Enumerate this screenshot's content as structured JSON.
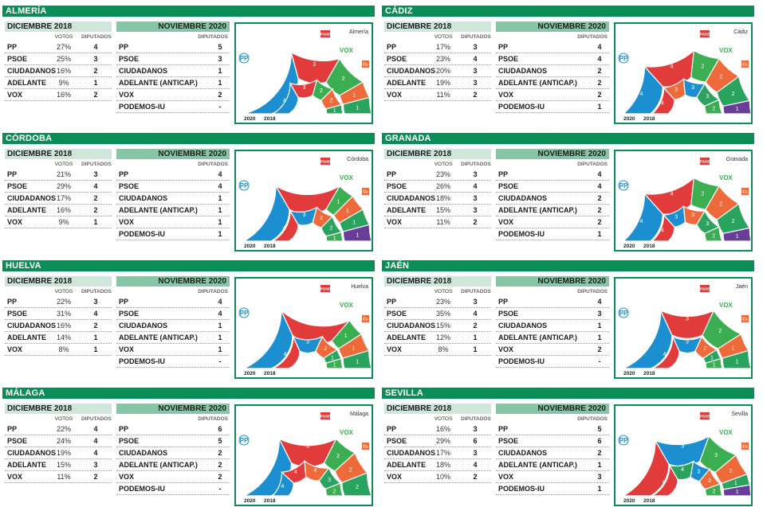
{
  "labels": {
    "dic2018": "DICIEMBRE 2018",
    "nov2020": "NOVIEMBRE 2020",
    "votos": "VOTOS",
    "diputados": "DIPUTADOS",
    "year2020": "2020",
    "year2018": "2018",
    "logos": {
      "pp": "PP",
      "psoe": "PSOE",
      "vox": "VOX",
      "cs": "Cs",
      "adelante": "A"
    }
  },
  "colors": {
    "PP": "#1b8fd0",
    "PSOE": "#e23b3b",
    "CIUDADANOS": "#ee6a3a",
    "ADELANTE": "#2aa35e",
    "VOX": "#3cae52",
    "PODEMOS-IU": "#6a3d9a",
    "frame": "#0a8d57"
  },
  "chart_data": [
    {
      "type": "parliament-semicircle",
      "province": "ALMERÍA",
      "chart_label": "Almería",
      "d2018": [
        {
          "party": "PP",
          "votes": "27%",
          "seats": "4"
        },
        {
          "party": "PSOE",
          "votes": "25%",
          "seats": "3"
        },
        {
          "party": "CIUDADANOS",
          "votes": "16%",
          "seats": "2"
        },
        {
          "party": "ADELANTE",
          "votes": "9%",
          "seats": "1"
        },
        {
          "party": "VOX",
          "votes": "16%",
          "seats": "2"
        }
      ],
      "n2020": [
        {
          "party": "PP",
          "seats": "5"
        },
        {
          "party": "PSOE",
          "seats": "3"
        },
        {
          "party": "CIUDADANOS",
          "seats": "1"
        },
        {
          "party": "ADELANTE (ANTICAP.)",
          "seats": "1"
        },
        {
          "party": "VOX",
          "seats": "2"
        },
        {
          "party": "PODEMOS-IU",
          "seats": "-"
        }
      ],
      "outer": [
        {
          "party": "PP",
          "seats": 5
        },
        {
          "party": "PSOE",
          "seats": 3
        },
        {
          "party": "VOX",
          "seats": 2
        },
        {
          "party": "CIUDADANOS",
          "seats": 1
        },
        {
          "party": "ADELANTE",
          "seats": 1
        }
      ],
      "inner": [
        {
          "party": "PP",
          "seats": 4
        },
        {
          "party": "PSOE",
          "seats": 3
        },
        {
          "party": "VOX",
          "seats": 2
        },
        {
          "party": "CIUDADANOS",
          "seats": 2
        },
        {
          "party": "ADELANTE",
          "seats": 1
        }
      ]
    },
    {
      "type": "parliament-semicircle",
      "province": "CÁDIZ",
      "chart_label": "Cádiz",
      "d2018": [
        {
          "party": "PP",
          "votes": "17%",
          "seats": "3"
        },
        {
          "party": "PSOE",
          "votes": "23%",
          "seats": "4"
        },
        {
          "party": "CIUDADANOS",
          "votes": "20%",
          "seats": "3"
        },
        {
          "party": "ADELANTE",
          "votes": "19%",
          "seats": "3"
        },
        {
          "party": "VOX",
          "votes": "11%",
          "seats": "2"
        }
      ],
      "n2020": [
        {
          "party": "PP",
          "seats": "4"
        },
        {
          "party": "PSOE",
          "seats": "4"
        },
        {
          "party": "CIUDADANOS",
          "seats": "2"
        },
        {
          "party": "ADELANTE (ANTICAP.)",
          "seats": "2"
        },
        {
          "party": "VOX",
          "seats": "2"
        },
        {
          "party": "PODEMOS-IU",
          "seats": "1"
        }
      ],
      "outer": [
        {
          "party": "PP",
          "seats": 4
        },
        {
          "party": "PSOE",
          "seats": 4
        },
        {
          "party": "VOX",
          "seats": 2
        },
        {
          "party": "CIUDADANOS",
          "seats": 2
        },
        {
          "party": "ADELANTE",
          "seats": 2
        },
        {
          "party": "PODEMOS-IU",
          "seats": 1
        }
      ],
      "inner": [
        {
          "party": "PSOE",
          "seats": 4
        },
        {
          "party": "CIUDADANOS",
          "seats": 3
        },
        {
          "party": "PP",
          "seats": 3
        },
        {
          "party": "ADELANTE",
          "seats": 3
        },
        {
          "party": "VOX",
          "seats": 2
        }
      ]
    },
    {
      "type": "parliament-semicircle",
      "province": "CÓRDOBA",
      "chart_label": "Córdoba",
      "d2018": [
        {
          "party": "PP",
          "votes": "21%",
          "seats": "3"
        },
        {
          "party": "PSOE",
          "votes": "29%",
          "seats": "4"
        },
        {
          "party": "CIUDADANOS",
          "votes": "17%",
          "seats": "2"
        },
        {
          "party": "ADELANTE",
          "votes": "16%",
          "seats": "2"
        },
        {
          "party": "VOX",
          "votes": "9%",
          "seats": "1"
        }
      ],
      "n2020": [
        {
          "party": "PP",
          "seats": "4"
        },
        {
          "party": "PSOE",
          "seats": "4"
        },
        {
          "party": "CIUDADANOS",
          "seats": "1"
        },
        {
          "party": "ADELANTE (ANTICAP.)",
          "seats": "1"
        },
        {
          "party": "VOX",
          "seats": "1"
        },
        {
          "party": "PODEMOS-IU",
          "seats": "1"
        }
      ],
      "outer": [
        {
          "party": "PP",
          "seats": 4
        },
        {
          "party": "PSOE",
          "seats": 4
        },
        {
          "party": "VOX",
          "seats": 1
        },
        {
          "party": "CIUDADANOS",
          "seats": 1
        },
        {
          "party": "ADELANTE",
          "seats": 1
        },
        {
          "party": "PODEMOS-IU",
          "seats": 1
        }
      ],
      "inner": [
        {
          "party": "PSOE",
          "seats": 4
        },
        {
          "party": "PP",
          "seats": 3
        },
        {
          "party": "CIUDADANOS",
          "seats": 2
        },
        {
          "party": "ADELANTE",
          "seats": 2
        },
        {
          "party": "VOX",
          "seats": 1
        }
      ]
    },
    {
      "type": "parliament-semicircle",
      "province": "GRANADA",
      "chart_label": "Granada",
      "d2018": [
        {
          "party": "PP",
          "votes": "23%",
          "seats": "3"
        },
        {
          "party": "PSOE",
          "votes": "26%",
          "seats": "4"
        },
        {
          "party": "CIUDADANOS",
          "votes": "18%",
          "seats": "3"
        },
        {
          "party": "ADELANTE",
          "votes": "15%",
          "seats": "3"
        },
        {
          "party": "VOX",
          "votes": "11%",
          "seats": "2"
        }
      ],
      "n2020": [
        {
          "party": "PP",
          "seats": "4"
        },
        {
          "party": "PSOE",
          "seats": "4"
        },
        {
          "party": "CIUDADANOS",
          "seats": "2"
        },
        {
          "party": "ADELANTE (ANTICAP.)",
          "seats": "2"
        },
        {
          "party": "VOX",
          "seats": "2"
        },
        {
          "party": "PODEMOS-IU",
          "seats": "1"
        }
      ],
      "outer": [
        {
          "party": "PP",
          "seats": 4
        },
        {
          "party": "PSOE",
          "seats": 4
        },
        {
          "party": "VOX",
          "seats": 2
        },
        {
          "party": "CIUDADANOS",
          "seats": 2
        },
        {
          "party": "ADELANTE",
          "seats": 2
        },
        {
          "party": "PODEMOS-IU",
          "seats": 1
        }
      ],
      "inner": [
        {
          "party": "PSOE",
          "seats": 4
        },
        {
          "party": "PP",
          "seats": 3
        },
        {
          "party": "CIUDADANOS",
          "seats": 3
        },
        {
          "party": "ADELANTE",
          "seats": 3
        },
        {
          "party": "VOX",
          "seats": 2
        }
      ]
    },
    {
      "type": "parliament-semicircle",
      "province": "HUELVA",
      "chart_label": "Huelva",
      "d2018": [
        {
          "party": "PP",
          "votes": "22%",
          "seats": "3"
        },
        {
          "party": "PSOE",
          "votes": "31%",
          "seats": "4"
        },
        {
          "party": "CIUDADANOS",
          "votes": "16%",
          "seats": "2"
        },
        {
          "party": "ADELANTE",
          "votes": "14%",
          "seats": "1"
        },
        {
          "party": "VOX",
          "votes": "8%",
          "seats": "1"
        }
      ],
      "n2020": [
        {
          "party": "PP",
          "seats": "4"
        },
        {
          "party": "PSOE",
          "seats": "4"
        },
        {
          "party": "CIUDADANOS",
          "seats": "1"
        },
        {
          "party": "ADELANTE (ANTICAP.)",
          "seats": "1"
        },
        {
          "party": "VOX",
          "seats": "1"
        },
        {
          "party": "PODEMOS-IU",
          "seats": "-"
        }
      ],
      "outer": [
        {
          "party": "PP",
          "seats": 4
        },
        {
          "party": "PSOE",
          "seats": 4
        },
        {
          "party": "VOX",
          "seats": 1
        },
        {
          "party": "CIUDADANOS",
          "seats": 1
        },
        {
          "party": "ADELANTE",
          "seats": 1
        }
      ],
      "inner": [
        {
          "party": "PSOE",
          "seats": 4
        },
        {
          "party": "PP",
          "seats": 3
        },
        {
          "party": "CIUDADANOS",
          "seats": 2
        },
        {
          "party": "ADELANTE",
          "seats": 1
        },
        {
          "party": "VOX",
          "seats": 1
        }
      ]
    },
    {
      "type": "parliament-semicircle",
      "province": "JAÉN",
      "chart_label": "Jaén",
      "d2018": [
        {
          "party": "PP",
          "votes": "23%",
          "seats": "3"
        },
        {
          "party": "PSOE",
          "votes": "35%",
          "seats": "4"
        },
        {
          "party": "CIUDADANOS",
          "votes": "15%",
          "seats": "2"
        },
        {
          "party": "ADELANTE",
          "votes": "12%",
          "seats": "1"
        },
        {
          "party": "VOX",
          "votes": "8%",
          "seats": "1"
        }
      ],
      "n2020": [
        {
          "party": "PP",
          "seats": "4"
        },
        {
          "party": "PSOE",
          "seats": "3"
        },
        {
          "party": "CIUDADANOS",
          "seats": "1"
        },
        {
          "party": "ADELANTE (ANTICAP.)",
          "seats": "1"
        },
        {
          "party": "VOX",
          "seats": "2"
        },
        {
          "party": "PODEMOS-IU",
          "seats": "-"
        }
      ],
      "outer": [
        {
          "party": "PP",
          "seats": 4
        },
        {
          "party": "PSOE",
          "seats": 3
        },
        {
          "party": "VOX",
          "seats": 2
        },
        {
          "party": "CIUDADANOS",
          "seats": 1
        },
        {
          "party": "ADELANTE",
          "seats": 1
        }
      ],
      "inner": [
        {
          "party": "PSOE",
          "seats": 4
        },
        {
          "party": "PP",
          "seats": 3
        },
        {
          "party": "CIUDADANOS",
          "seats": 2
        },
        {
          "party": "ADELANTE",
          "seats": 1
        },
        {
          "party": "VOX",
          "seats": 1
        }
      ]
    },
    {
      "type": "parliament-semicircle",
      "province": "MÁLAGA",
      "chart_label": "Málaga",
      "d2018": [
        {
          "party": "PP",
          "votes": "22%",
          "seats": "4"
        },
        {
          "party": "PSOE",
          "votes": "24%",
          "seats": "4"
        },
        {
          "party": "CIUDADANOS",
          "votes": "19%",
          "seats": "4"
        },
        {
          "party": "ADELANTE",
          "votes": "15%",
          "seats": "3"
        },
        {
          "party": "VOX",
          "votes": "11%",
          "seats": "2"
        }
      ],
      "n2020": [
        {
          "party": "PP",
          "seats": "6"
        },
        {
          "party": "PSOE",
          "seats": "5"
        },
        {
          "party": "CIUDADANOS",
          "seats": "2"
        },
        {
          "party": "ADELANTE (ANTICAP.)",
          "seats": "2"
        },
        {
          "party": "VOX",
          "seats": "2"
        },
        {
          "party": "PODEMOS-IU",
          "seats": "-"
        }
      ],
      "outer": [
        {
          "party": "PP",
          "seats": 6
        },
        {
          "party": "PSOE",
          "seats": 5
        },
        {
          "party": "VOX",
          "seats": 2
        },
        {
          "party": "CIUDADANOS",
          "seats": 2
        },
        {
          "party": "ADELANTE",
          "seats": 2
        }
      ],
      "inner": [
        {
          "party": "PP",
          "seats": 4
        },
        {
          "party": "PSOE",
          "seats": 4
        },
        {
          "party": "CIUDADANOS",
          "seats": 4
        },
        {
          "party": "ADELANTE",
          "seats": 3
        },
        {
          "party": "VOX",
          "seats": 2
        }
      ]
    },
    {
      "type": "parliament-semicircle",
      "province": "SEVILLA",
      "chart_label": "Sevilla",
      "d2018": [
        {
          "party": "PP",
          "votes": "16%",
          "seats": "3"
        },
        {
          "party": "PSOE",
          "votes": "29%",
          "seats": "6"
        },
        {
          "party": "CIUDADANOS",
          "votes": "17%",
          "seats": "3"
        },
        {
          "party": "ADELANTE",
          "votes": "18%",
          "seats": "4"
        },
        {
          "party": "VOX",
          "votes": "10%",
          "seats": "2"
        }
      ],
      "n2020": [
        {
          "party": "PP",
          "seats": "5"
        },
        {
          "party": "PSOE",
          "seats": "6"
        },
        {
          "party": "CIUDADANOS",
          "seats": "2"
        },
        {
          "party": "ADELANTE (ANTICAP.)",
          "seats": "1"
        },
        {
          "party": "VOX",
          "seats": "3"
        },
        {
          "party": "PODEMOS-IU",
          "seats": "1"
        }
      ],
      "outer": [
        {
          "party": "PSOE",
          "seats": 6
        },
        {
          "party": "PP",
          "seats": 5
        },
        {
          "party": "VOX",
          "seats": 3
        },
        {
          "party": "CIUDADANOS",
          "seats": 2
        },
        {
          "party": "ADELANTE",
          "seats": 1
        },
        {
          "party": "PODEMOS-IU",
          "seats": 1
        }
      ],
      "inner": [
        {
          "party": "PSOE",
          "seats": 6
        },
        {
          "party": "ADELANTE",
          "seats": 4
        },
        {
          "party": "PP",
          "seats": 3
        },
        {
          "party": "CIUDADANOS",
          "seats": 3
        },
        {
          "party": "VOX",
          "seats": 2
        }
      ]
    }
  ]
}
